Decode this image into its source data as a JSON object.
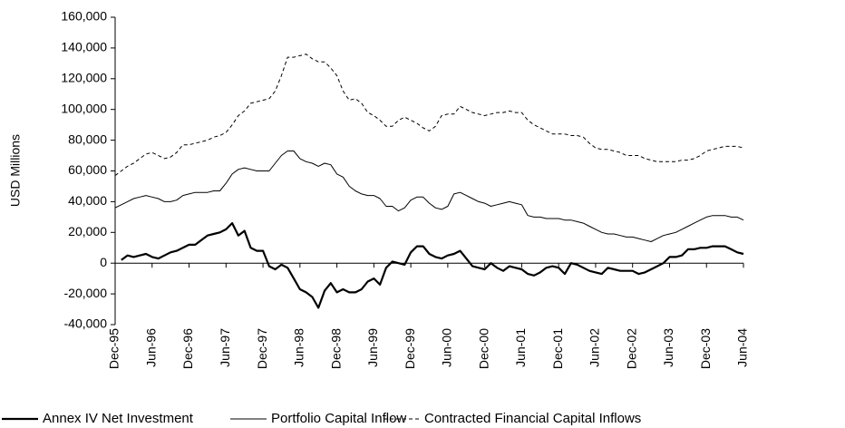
{
  "chart_data": {
    "type": "line",
    "y_label": "USD Millions",
    "categories": [
      "Dec-95",
      null,
      null,
      null,
      null,
      null,
      "Jun-96",
      null,
      null,
      null,
      null,
      null,
      "Dec-96",
      null,
      null,
      null,
      null,
      null,
      "Jun-97",
      null,
      null,
      null,
      null,
      null,
      "Dec-97",
      null,
      null,
      null,
      null,
      null,
      "Jun-98",
      null,
      null,
      null,
      null,
      null,
      "Dec-98",
      null,
      null,
      null,
      null,
      null,
      "Jun-99",
      null,
      null,
      null,
      null,
      null,
      "Dec-99",
      null,
      null,
      null,
      null,
      null,
      "Jun-00",
      null,
      null,
      null,
      null,
      null,
      "Dec-00",
      null,
      null,
      null,
      null,
      null,
      "Jun-01",
      null,
      null,
      null,
      null,
      null,
      "Dec-01",
      null,
      null,
      null,
      null,
      null,
      "Jun-02",
      null,
      null,
      null,
      null,
      null,
      "Dec-02",
      null,
      null,
      null,
      null,
      null,
      "Jun-03",
      null,
      null,
      null,
      null,
      null,
      "Dec-03",
      null,
      null,
      null,
      null,
      null,
      "Jun-04"
    ],
    "series": [
      {
        "name": "Annex IV Net Investment",
        "color": "#000000",
        "width": 2.2,
        "dash": "solid",
        "values": [
          null,
          2000,
          5000,
          4000,
          5000,
          6000,
          4000,
          3000,
          5000,
          7000,
          8000,
          10000,
          12000,
          12000,
          15000,
          18000,
          19000,
          20000,
          22000,
          26000,
          18000,
          21000,
          10000,
          8000,
          8000,
          -2000,
          -4000,
          -1000,
          -3000,
          -10000,
          -17000,
          -19000,
          -22000,
          -29000,
          -18000,
          -13000,
          -19000,
          -17000,
          -19000,
          -19000,
          -17000,
          -12000,
          -10000,
          -14000,
          -3000,
          1000,
          0,
          -1000,
          7000,
          11000,
          11000,
          6000,
          4000,
          3000,
          5000,
          6000,
          8000,
          3000,
          -2000,
          -3000,
          -4000,
          0,
          -3000,
          -5000,
          -2000,
          -3000,
          -4000,
          -7000,
          -8000,
          -6000,
          -3000,
          -2000,
          -3000,
          -7000,
          0,
          -1000,
          -3000,
          -5000,
          -6000,
          -7000,
          -3000,
          -4000,
          -5000,
          -5000,
          -5000,
          -7000,
          -6000,
          -4000,
          -2000,
          0,
          4000,
          4000,
          5000,
          9000,
          9000,
          10000,
          10000,
          11000,
          11000,
          11000,
          9000,
          7000,
          6000
        ]
      },
      {
        "name": "Portfolio Capital Inflow",
        "color": "#000000",
        "width": 1,
        "dash": "solid",
        "values": [
          36000,
          38000,
          40000,
          42000,
          43000,
          44000,
          43000,
          42000,
          40000,
          40000,
          41000,
          44000,
          45000,
          46000,
          46000,
          46000,
          47000,
          47000,
          52000,
          58000,
          61000,
          62000,
          61000,
          60000,
          60000,
          60000,
          65000,
          70000,
          73000,
          73000,
          68000,
          66000,
          65000,
          63000,
          65000,
          64000,
          58000,
          56000,
          50000,
          47000,
          45000,
          44000,
          44000,
          42000,
          37000,
          37000,
          34000,
          36000,
          41000,
          43000,
          43000,
          39000,
          36000,
          35000,
          37000,
          45000,
          46000,
          44000,
          42000,
          40000,
          39000,
          37000,
          38000,
          39000,
          40000,
          39000,
          38000,
          31000,
          30000,
          30000,
          29000,
          29000,
          29000,
          28000,
          28000,
          27000,
          26000,
          24000,
          22000,
          20000,
          19000,
          19000,
          18000,
          17000,
          17000,
          16000,
          15000,
          14000,
          16000,
          18000,
          19000,
          20000,
          22000,
          24000,
          26000,
          28000,
          30000,
          31000,
          31000,
          31000,
          30000,
          30000,
          28000
        ]
      },
      {
        "name": "Contracted Financial Capital Inflows",
        "color": "#000000",
        "width": 1,
        "dash": "dashed",
        "values": [
          57000,
          60000,
          63000,
          65000,
          68000,
          71000,
          72000,
          70000,
          68000,
          69000,
          72000,
          77000,
          77000,
          78000,
          79000,
          80000,
          82000,
          83000,
          85000,
          90000,
          96000,
          99000,
          104000,
          105000,
          106000,
          107000,
          112000,
          122000,
          134000,
          134000,
          135000,
          136000,
          133000,
          131000,
          131000,
          127000,
          122000,
          112000,
          106000,
          107000,
          104000,
          98000,
          96000,
          93000,
          89000,
          89000,
          93000,
          95000,
          93000,
          91000,
          88000,
          86000,
          89000,
          96000,
          97000,
          97000,
          102000,
          100000,
          98000,
          97000,
          96000,
          97000,
          98000,
          98000,
          99000,
          98000,
          98000,
          93000,
          90000,
          88000,
          86000,
          84000,
          84000,
          84000,
          83000,
          83000,
          82000,
          78000,
          75000,
          74000,
          74000,
          73000,
          72000,
          70000,
          70000,
          70000,
          68000,
          67000,
          66000,
          66000,
          66000,
          66000,
          67000,
          67000,
          68000,
          70000,
          73000,
          74000,
          75000,
          76000,
          76000,
          76000,
          75000
        ]
      }
    ],
    "ylim": [
      -40000,
      160000
    ],
    "yticks": [
      {
        "value": -40000,
        "label": "-40,000"
      },
      {
        "value": -20000,
        "label": "-20,000"
      },
      0,
      {
        "value": 20000,
        "label": "20,000"
      },
      {
        "value": 40000,
        "label": "40,000"
      },
      {
        "value": 60000,
        "label": "60,000"
      },
      {
        "value": 80000,
        "label": "80,000"
      },
      {
        "value": 100000,
        "label": "100,000"
      },
      {
        "value": 120000,
        "label": "120,000"
      },
      {
        "value": 140000,
        "label": "140,000"
      },
      {
        "value": 160000,
        "label": "160,000"
      }
    ],
    "grid": false,
    "legend": "bottom"
  }
}
